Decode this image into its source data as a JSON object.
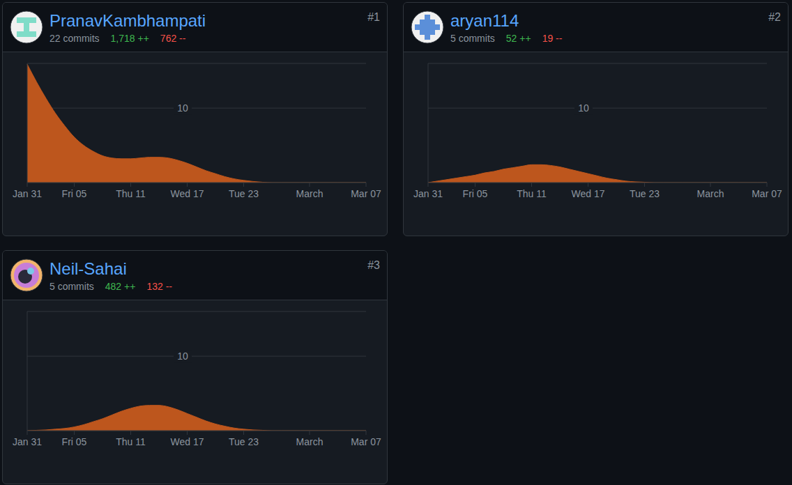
{
  "chart_data": [
    {
      "type": "area",
      "title": "PranavKambhampati",
      "subtitle": "22 commits",
      "annotations": {
        "rank": "#1",
        "additions": "1,718 ++",
        "deletions": "762 --"
      },
      "categories": [
        "Jan 31",
        null,
        null,
        null,
        null,
        "Fri 05",
        null,
        null,
        null,
        null,
        null,
        "Thu 11",
        null,
        null,
        null,
        null,
        null,
        "Wed 17",
        null,
        null,
        null,
        null,
        null,
        "Tue 23",
        null,
        null,
        null,
        null,
        null,
        null,
        "March",
        null,
        null,
        null,
        null,
        null,
        "Mar 07"
      ],
      "values": [
        15.9,
        13.5,
        11.3,
        9.3,
        7.6,
        6.1,
        5.0,
        4.2,
        3.6,
        3.3,
        3.2,
        3.2,
        3.3,
        3.4,
        3.4,
        3.3,
        3.0,
        2.6,
        2.1,
        1.6,
        1.2,
        0.8,
        0.5,
        0.3,
        0.15,
        0.05,
        0,
        0,
        0,
        0,
        0,
        0,
        0,
        0,
        0,
        0,
        0
      ],
      "color": "#bd561d",
      "ylim": [
        0,
        16
      ],
      "yticks": [
        10
      ],
      "grid": true
    },
    {
      "type": "area",
      "title": "aryan114",
      "subtitle": "5 commits",
      "annotations": {
        "rank": "#2",
        "additions": "52 ++",
        "deletions": "19 --"
      },
      "categories": [
        "Jan 31",
        null,
        null,
        null,
        null,
        "Fri 05",
        null,
        null,
        null,
        null,
        null,
        "Thu 11",
        null,
        null,
        null,
        null,
        null,
        "Wed 17",
        null,
        null,
        null,
        null,
        null,
        "Tue 23",
        null,
        null,
        null,
        null,
        null,
        null,
        "March",
        null,
        null,
        null,
        null,
        null,
        "Mar 07"
      ],
      "values": [
        0,
        0.2,
        0.4,
        0.6,
        0.8,
        1.0,
        1.3,
        1.5,
        1.8,
        2.0,
        2.2,
        2.4,
        2.4,
        2.3,
        2.1,
        1.8,
        1.5,
        1.2,
        0.9,
        0.6,
        0.4,
        0.2,
        0.1,
        0.05,
        0,
        0,
        0,
        0,
        0,
        0,
        0,
        0,
        0,
        0,
        0,
        0,
        0
      ],
      "color": "#bd561d",
      "ylim": [
        0,
        16
      ],
      "yticks": [
        10
      ],
      "grid": true
    },
    {
      "type": "area",
      "title": "Neil-Sahai",
      "subtitle": "5 commits",
      "annotations": {
        "rank": "#3",
        "additions": "482 ++",
        "deletions": "132 --"
      },
      "categories": [
        "Jan 31",
        null,
        null,
        null,
        null,
        "Fri 05",
        null,
        null,
        null,
        null,
        null,
        "Thu 11",
        null,
        null,
        null,
        null,
        null,
        "Wed 17",
        null,
        null,
        null,
        null,
        null,
        "Tue 23",
        null,
        null,
        null,
        null,
        null,
        null,
        "March",
        null,
        null,
        null,
        null,
        null,
        "Mar 07"
      ],
      "values": [
        0,
        0.05,
        0.1,
        0.2,
        0.3,
        0.5,
        0.8,
        1.2,
        1.6,
        2.1,
        2.6,
        3.0,
        3.3,
        3.4,
        3.4,
        3.2,
        2.8,
        2.3,
        1.8,
        1.3,
        0.9,
        0.6,
        0.35,
        0.2,
        0.1,
        0.05,
        0,
        0,
        0,
        0,
        0,
        0,
        0,
        0,
        0,
        0,
        0
      ],
      "color": "#bd561d",
      "ylim": [
        0,
        16
      ],
      "yticks": [
        10
      ],
      "grid": true
    }
  ]
}
